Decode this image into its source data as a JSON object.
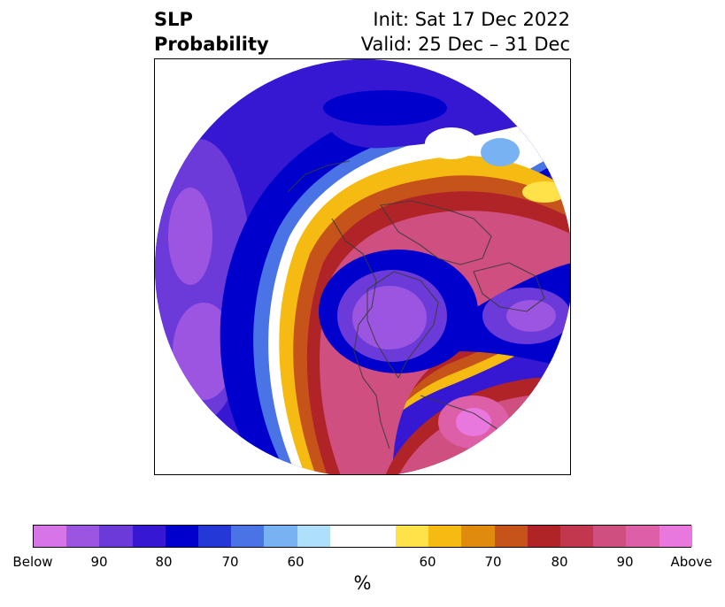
{
  "title": {
    "left_line1": "SLP",
    "left_line2": "Probability",
    "right_line1": "Init: Sat 17 Dec 2022",
    "right_line2": "Valid: 25 Dec – 31 Dec"
  },
  "colorbar": {
    "units": "%",
    "colors": [
      "#d674e8",
      "#9c55e0",
      "#6b3ad8",
      "#3718d2",
      "#0000cc",
      "#2438d8",
      "#4a74e6",
      "#78b2f2",
      "#aee0fb",
      "#ffffff",
      "#ffe14a",
      "#f5bb12",
      "#e08a0e",
      "#c6531a",
      "#b02326",
      "#c2364e",
      "#cf4f80",
      "#dc5fa8",
      "#e878dd"
    ],
    "tick_labels": [
      "Below",
      "90",
      "80",
      "70",
      "60",
      "60",
      "70",
      "80",
      "90",
      "Above"
    ]
  },
  "map": {
    "projection": "north polar stereographic",
    "description_colors": {
      "below_strong": "#9c55e0",
      "below_blue": "#0000cc",
      "neutral": "#ffffff",
      "above_yellow": "#f5bb12",
      "above_red": "#b02326",
      "above_pink": "#cf4f80"
    }
  }
}
